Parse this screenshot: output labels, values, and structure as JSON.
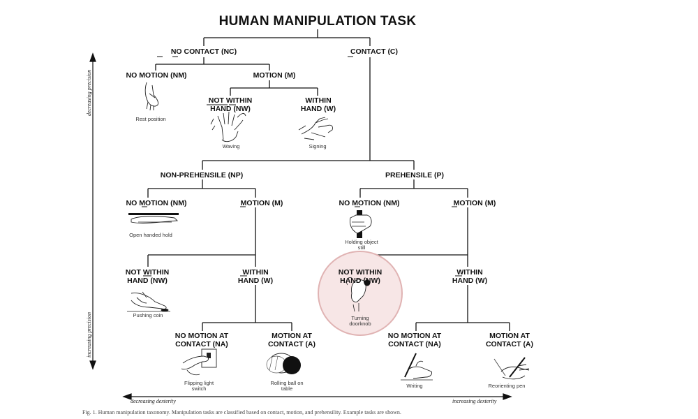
{
  "title": "HUMAN MANIPULATION TASK",
  "nodes": {
    "no_contact": "NO CONTACT (NC)",
    "contact": "CONTACT (C)",
    "nc_no_motion": "NO MOTION (NM)",
    "nc_motion": "MOTION (M)",
    "nc_not_within_1": "NOT WITHIN",
    "nc_not_within_2": "HAND (NW)",
    "nc_within_1": "WITHIN",
    "nc_within_2": "HAND (W)",
    "non_prehensile": "NON-PREHENSILE (NP)",
    "prehensile": "PREHENSILE (P)",
    "np_no_motion": "NO MOTION (NM)",
    "np_motion": "MOTION (M)",
    "np_not_within_1": "NOT WITHIN",
    "np_not_within_2": "HAND (NW)",
    "np_within_1": "WITHIN",
    "np_within_2": "HAND (W)",
    "np_na_1": "NO MOTION AT",
    "np_na_2": "CONTACT (NA)",
    "np_a_1": "MOTION AT",
    "np_a_2": "CONTACT (A)",
    "p_no_motion": "NO MOTION (NM)",
    "p_motion": "MOTION (M)",
    "p_not_within_1": "NOT WITHIN",
    "p_not_within_2": "HAND (NW)",
    "p_within_1": "WITHIN",
    "p_within_2": "HAND (W)",
    "p_na_1": "NO MOTION AT",
    "p_na_2": "CONTACT (NA)",
    "p_a_1": "MOTION AT",
    "p_a_2": "CONTACT (A)"
  },
  "captions": {
    "rest_position": "Rest position",
    "waving": "Waving",
    "signing": "Signing",
    "open_handed_hold": "Open handed hold",
    "holding_object_1": "Holding object",
    "holding_object_2": "still",
    "pushing_coin": "Pushing coin",
    "turning_doorknob_1": "Turning",
    "turning_doorknob_2": "doorknob",
    "flipping_switch_1": "Flipping light",
    "flipping_switch_2": "switch",
    "rolling_ball_1": "Rolling ball on",
    "rolling_ball_2": "table",
    "writing": "Writing",
    "reorienting_pen": "Reorienting pen"
  },
  "axes": {
    "decreasing_precision": "decreasing precision",
    "increasing_precision": "increasing precision",
    "decreasing_dexterity": "decreasing dexterity",
    "increasing_dexterity": "increasing dexterity"
  },
  "figure_caption": "Fig. 1. Human manipulation taxonomy. Manipulation tasks are classified based on contact, motion, and prehensility. Example tasks are shown."
}
